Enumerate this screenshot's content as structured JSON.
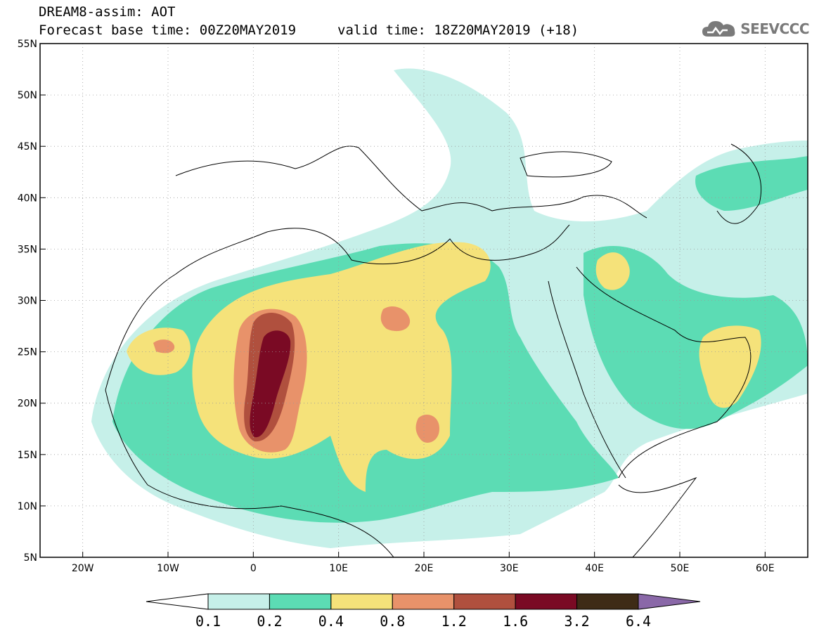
{
  "title": {
    "line1": "DREAM8-assim: AOT",
    "line2": "Forecast base time: 00Z20MAY2019",
    "line2b": "valid time: 18Z20MAY2019 (+18)"
  },
  "logo": {
    "text": "SEEVCCC",
    "icon": "cloud-icon",
    "color": "#7a7a7a"
  },
  "map": {
    "lon_range": [
      -25,
      65
    ],
    "lat_range": [
      5,
      55
    ],
    "lon_ticks": [
      {
        "value": -20,
        "label": "20W"
      },
      {
        "value": -10,
        "label": "10W"
      },
      {
        "value": 0,
        "label": "0"
      },
      {
        "value": 10,
        "label": "10E"
      },
      {
        "value": 20,
        "label": "20E"
      },
      {
        "value": 30,
        "label": "30E"
      },
      {
        "value": 40,
        "label": "40E"
      },
      {
        "value": 50,
        "label": "50E"
      },
      {
        "value": 60,
        "label": "60E"
      }
    ],
    "lat_ticks": [
      {
        "value": 55,
        "label": "55N"
      },
      {
        "value": 50,
        "label": "50N"
      },
      {
        "value": 45,
        "label": "45N"
      },
      {
        "value": 40,
        "label": "40N"
      },
      {
        "value": 35,
        "label": "35N"
      },
      {
        "value": 30,
        "label": "30N"
      },
      {
        "value": 25,
        "label": "25N"
      },
      {
        "value": 20,
        "label": "20N"
      },
      {
        "value": 15,
        "label": "15N"
      },
      {
        "value": 10,
        "label": "10N"
      },
      {
        "value": 5,
        "label": "5N"
      }
    ],
    "grid": "dotted"
  },
  "colorbar": {
    "colors": [
      "#ffffff",
      "#c6f0e9",
      "#5cdcb4",
      "#f5e27a",
      "#e8926a",
      "#b0503e",
      "#7a0a24",
      "#3e2b16",
      "#8a68a8"
    ],
    "labels": [
      "0.1",
      "0.2",
      "0.4",
      "0.8",
      "1.2",
      "1.6",
      "3.2",
      "6.4"
    ]
  }
}
